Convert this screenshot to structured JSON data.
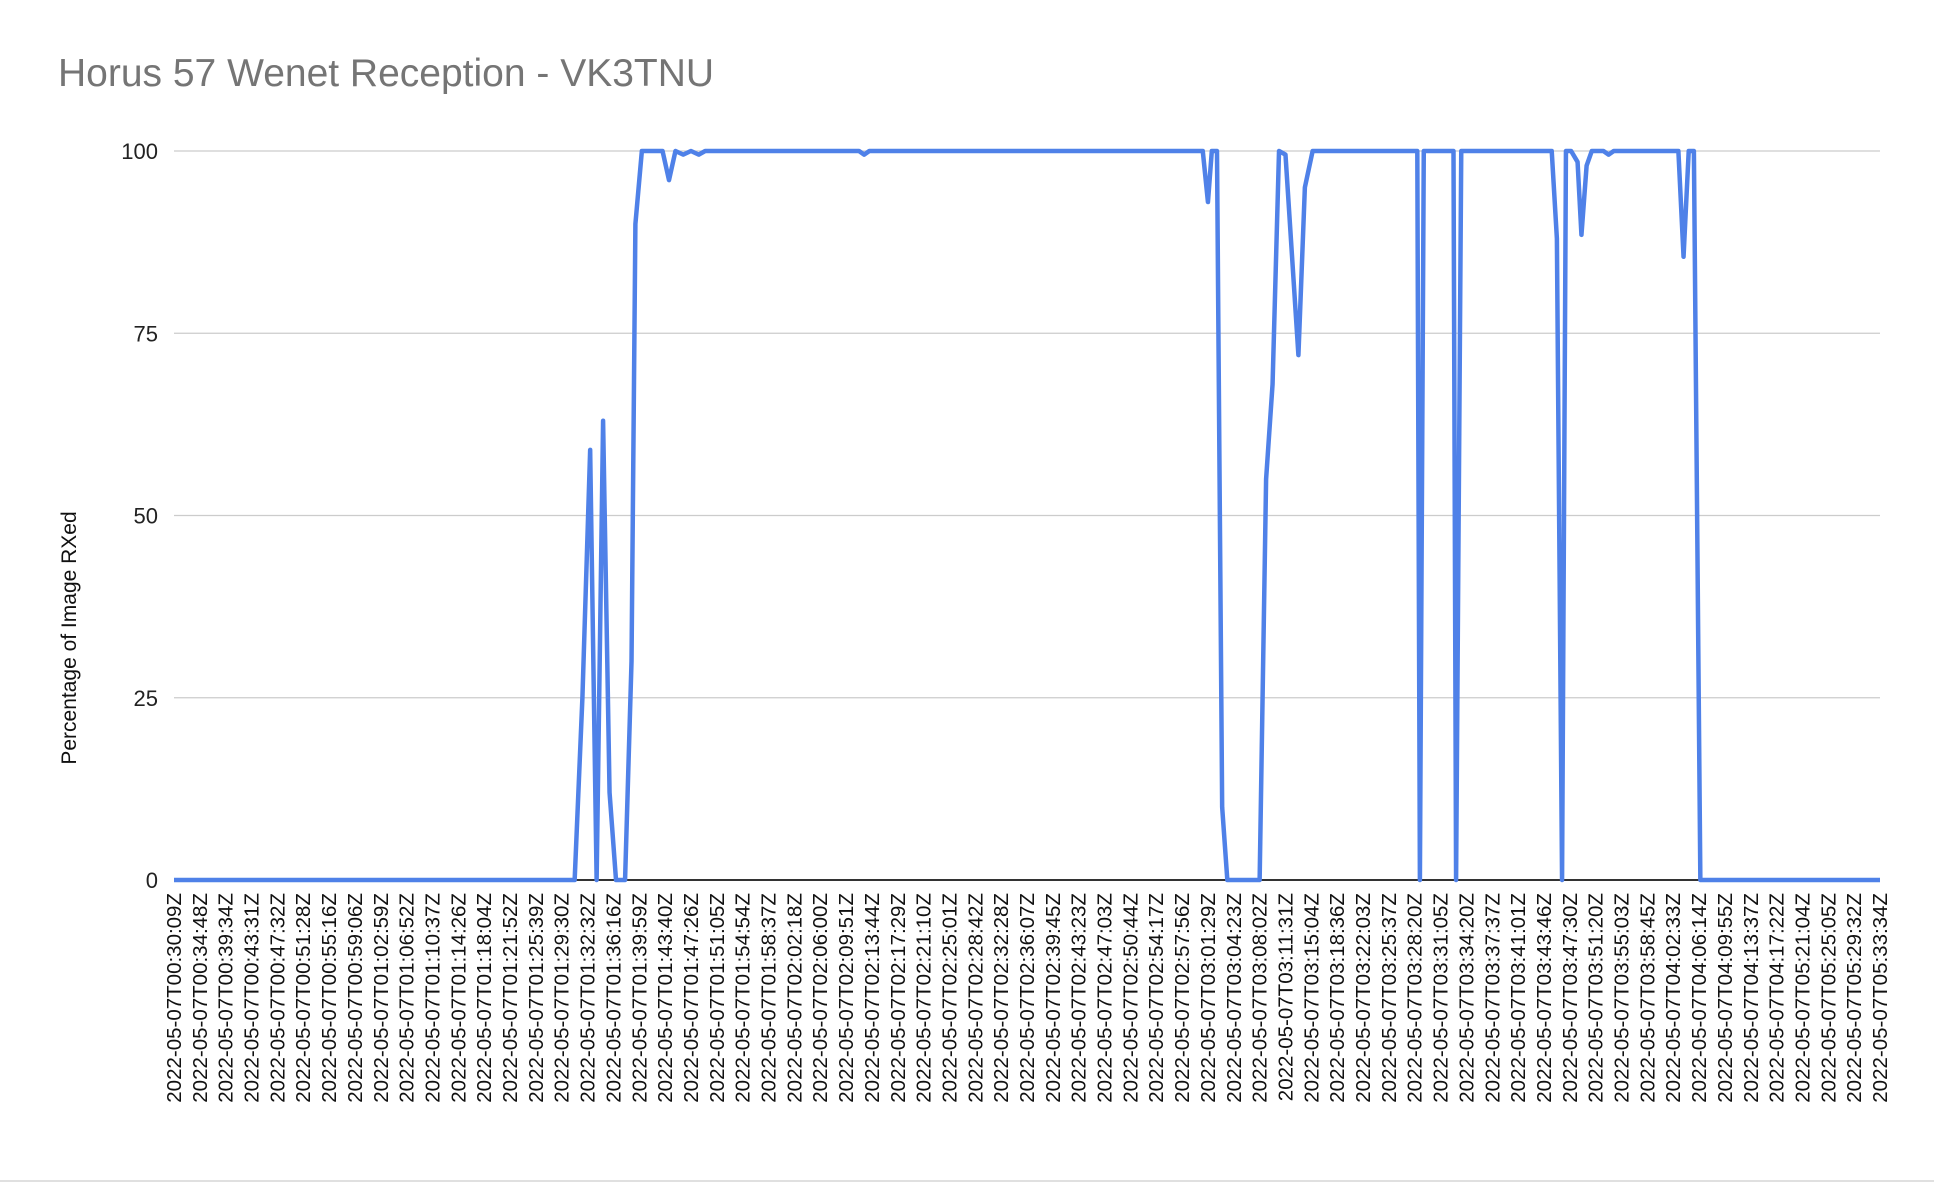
{
  "chart_data": {
    "type": "line",
    "title": "Horus 57 Wenet Reception - VK3TNU",
    "xlabel": "",
    "ylabel": "Percentage of Image RXed",
    "ylim": [
      0,
      100
    ],
    "yticks": [
      0,
      25,
      50,
      75,
      100
    ],
    "grid": true,
    "legend": "none",
    "line_color": "#4f81e8",
    "grid_color": "#cccccc",
    "x_tick_labels": [
      "2022-05-07T00:30:09Z",
      "2022-05-07T00:34:48Z",
      "2022-05-07T00:39:34Z",
      "2022-05-07T00:43:31Z",
      "2022-05-07T00:47:32Z",
      "2022-05-07T00:51:28Z",
      "2022-05-07T00:55:16Z",
      "2022-05-07T00:59:06Z",
      "2022-05-07T01:02:59Z",
      "2022-05-07T01:06:52Z",
      "2022-05-07T01:10:37Z",
      "2022-05-07T01:14:26Z",
      "2022-05-07T01:18:04Z",
      "2022-05-07T01:21:52Z",
      "2022-05-07T01:25:39Z",
      "2022-05-07T01:29:30Z",
      "2022-05-07T01:32:32Z",
      "2022-05-07T01:36:16Z",
      "2022-05-07T01:39:59Z",
      "2022-05-07T01:43:40Z",
      "2022-05-07T01:47:26Z",
      "2022-05-07T01:51:05Z",
      "2022-05-07T01:54:54Z",
      "2022-05-07T01:58:37Z",
      "2022-05-07T02:02:18Z",
      "2022-05-07T02:06:00Z",
      "2022-05-07T02:09:51Z",
      "2022-05-07T02:13:44Z",
      "2022-05-07T02:17:29Z",
      "2022-05-07T02:21:10Z",
      "2022-05-07T02:25:01Z",
      "2022-05-07T02:28:42Z",
      "2022-05-07T02:32:28Z",
      "2022-05-07T02:36:07Z",
      "2022-05-07T02:39:45Z",
      "2022-05-07T02:43:23Z",
      "2022-05-07T02:47:03Z",
      "2022-05-07T02:50:44Z",
      "2022-05-07T02:54:17Z",
      "2022-05-07T02:57:56Z",
      "2022-05-07T03:01:29Z",
      "2022-05-07T03:04:23Z",
      "2022-05-07T03:08:02Z",
      "2022-05-07T03:11:31Z",
      "2022-05-07T03:15:04Z",
      "2022-05-07T03:18:36Z",
      "2022-05-07T03:22:03Z",
      "2022-05-07T03:25:37Z",
      "2022-05-07T03:28:20Z",
      "2022-05-07T03:31:05Z",
      "2022-05-07T03:34:20Z",
      "2022-05-07T03:37:37Z",
      "2022-05-07T03:41:01Z",
      "2022-05-07T03:43:46Z",
      "2022-05-07T03:47:30Z",
      "2022-05-07T03:51:20Z",
      "2022-05-07T03:55:03Z",
      "2022-05-07T03:58:45Z",
      "2022-05-07T04:02:33Z",
      "2022-05-07T04:06:14Z",
      "2022-05-07T04:09:55Z",
      "2022-05-07T04:13:37Z",
      "2022-05-07T04:17:22Z",
      "2022-05-07T05:21:04Z",
      "2022-05-07T05:25:05Z",
      "2022-05-07T05:29:32Z",
      "2022-05-07T05:33:34Z"
    ],
    "series": [
      {
        "values": [
          0,
          0,
          0,
          0,
          0,
          0,
          0,
          0,
          0,
          0,
          0,
          0,
          0,
          0,
          0,
          0,
          0,
          0,
          0,
          0,
          0,
          0,
          0,
          0,
          0,
          0,
          0,
          0,
          0,
          0,
          0,
          0,
          0,
          0,
          0,
          0,
          0,
          0,
          0,
          0,
          0,
          0,
          0,
          0,
          0,
          0,
          0,
          0,
          0,
          0,
          0,
          0,
          0,
          0,
          0,
          0,
          0,
          0,
          0,
          0,
          0,
          0,
          0,
          0,
          0,
          0,
          0,
          0,
          0,
          0,
          0,
          0,
          0,
          0,
          0,
          0,
          0,
          0,
          0,
          0,
          0,
          0,
          0,
          0,
          0,
          0,
          0,
          0,
          0,
          0,
          0,
          0,
          0,
          0,
          0,
          0,
          0,
          0,
          0,
          0,
          0,
          0,
          0,
          0,
          0,
          0,
          0,
          0,
          0,
          0,
          0,
          0,
          0,
          0,
          0,
          0,
          0,
          0,
          0,
          0,
          0,
          0,
          0,
          0,
          0,
          0,
          0,
          0,
          0,
          0,
          0,
          0,
          0,
          0,
          0,
          0,
          0,
          0,
          0,
          0,
          0,
          0,
          0,
          0,
          0,
          0,
          0,
          0,
          0,
          0,
          0,
          0,
          0,
          0,
          0,
          0,
          0,
          0,
          0,
          0,
          0,
          0,
          0,
          0,
          0,
          0,
          0,
          0,
          0,
          0,
          0,
          0,
          0,
          0,
          0,
          0,
          0,
          0,
          0,
          0,
          0,
          0,
          0,
          0,
          0,
          0,
          0,
          0,
          0,
          0,
          0,
          0,
          0,
          0,
          0,
          0,
          0,
          0,
          0,
          0,
          0,
          0,
          0,
          0,
          0,
          0,
          0,
          0,
          0,
          0,
          0,
          0,
          0,
          0,
          0,
          0,
          0,
          0,
          0,
          0,
          0,
          0,
          0,
          0,
          0,
          0,
          0,
          0,
          0,
          0,
          0,
          0,
          0,
          0,
          0,
          0,
          0,
          0,
          0,
          0,
          0,
          0,
          0,
          0,
          0,
          0,
          0,
          0,
          0,
          0,
          0,
          0,
          0,
          0,
          0,
          0,
          0,
          0,
          0,
          0,
          0,
          0,
          0,
          0,
          0,
          0,
          0,
          0,
          0,
          0,
          0,
          0,
          0,
          0,
          0,
          0,
          0,
          0,
          0,
          0,
          0,
          0,
          0,
          0,
          0,
          0,
          0,
          0,
          0,
          0,
          0,
          0,
          0,
          0,
          0,
          0,
          0,
          0,
          0,
          0,
          0,
          0,
          0,
          0,
          0,
          0,
          0,
          0,
          0,
          0,
          0,
          0,
          0,
          0,
          0,
          0,
          0,
          0,
          0,
          0,
          0,
          0,
          0,
          0,
          0,
          0,
          0,
          0,
          0,
          0,
          0,
          0,
          0,
          0,
          0,
          0,
          0,
          0,
          0,
          0,
          0,
          0,
          0,
          0,
          0,
          0,
          0,
          0,
          0,
          0,
          0,
          0,
          0,
          0,
          0,
          0,
          0,
          0,
          0,
          0,
          0,
          0,
          0,
          0,
          0,
          0,
          0,
          0,
          0,
          0,
          0,
          0,
          0,
          0,
          0,
          0,
          0,
          0,
          0,
          0,
          0,
          0,
          0,
          0,
          0,
          0,
          0,
          0,
          0,
          0,
          0,
          0,
          0,
          0,
          0,
          0,
          0,
          0,
          0,
          0,
          0,
          0,
          0,
          0,
          0,
          0,
          0,
          0,
          0,
          0,
          0,
          0,
          0,
          0,
          0,
          0,
          0,
          0,
          0,
          0,
          0,
          0,
          0,
          0,
          0,
          0,
          0,
          0,
          0,
          0,
          0,
          0,
          0,
          0,
          0,
          0,
          0,
          0,
          0,
          0,
          0,
          0,
          0,
          0,
          0,
          0,
          0,
          0,
          0,
          0,
          0,
          0,
          0,
          0,
          0,
          0,
          0,
          0,
          0,
          0,
          0,
          0,
          0,
          0,
          0,
          0,
          0,
          0,
          0,
          0,
          0,
          0,
          0,
          0,
          0,
          0,
          0,
          0,
          0,
          0,
          0,
          0,
          0,
          0,
          0,
          0,
          0,
          0,
          0,
          0,
          0,
          0,
          0,
          0,
          0,
          0,
          0,
          0,
          0,
          0,
          0,
          0,
          0,
          0,
          0,
          0,
          0,
          0,
          0,
          0,
          0,
          0,
          0,
          0,
          0,
          0,
          0,
          0,
          0,
          0,
          0,
          0,
          0,
          0,
          0,
          0,
          0,
          0,
          0,
          0,
          0,
          0,
          0,
          0,
          0,
          0,
          0,
          0,
          0,
          0,
          0,
          0,
          0,
          0,
          0,
          0,
          0,
          0,
          0,
          0,
          0,
          0,
          0,
          0,
          0,
          0,
          0,
          0,
          0,
          0,
          0,
          0,
          0,
          0,
          0,
          0,
          0,
          0,
          0,
          0,
          0,
          0,
          0,
          0,
          0,
          0,
          0,
          0,
          0,
          0,
          0,
          0,
          0,
          0,
          0,
          0,
          0,
          0,
          0,
          0,
          0,
          0,
          0,
          0,
          0,
          0,
          0,
          0,
          0,
          0,
          0,
          0,
          0,
          0,
          0,
          0,
          0,
          0,
          0,
          0,
          0,
          0,
          0,
          0,
          0,
          0,
          0,
          0,
          0,
          0,
          0,
          0,
          0,
          0,
          0,
          0,
          0,
          0,
          0,
          0,
          0,
          0,
          0,
          0,
          0,
          0,
          0,
          0,
          0,
          0,
          0,
          0,
          0,
          0,
          0,
          0,
          0,
          0,
          0,
          0,
          0,
          0,
          0,
          0,
          0,
          0,
          0,
          0,
          0,
          0,
          0,
          0,
          0,
          0,
          0,
          0,
          0,
          0,
          0,
          0,
          0,
          0,
          0,
          0,
          0,
          0,
          0,
          0,
          0,
          0,
          0,
          0,
          0,
          0,
          0,
          0,
          0,
          0,
          0,
          0,
          0,
          0,
          0,
          0,
          0,
          0,
          0,
          0,
          0,
          0,
          0,
          0,
          0,
          0,
          0,
          0,
          0,
          0,
          0,
          0,
          0,
          0,
          0,
          0,
          0,
          0,
          0,
          0,
          0,
          0,
          0,
          0,
          0,
          0,
          0,
          0,
          0,
          0,
          0,
          0,
          0,
          0,
          0,
          0,
          0,
          0,
          0,
          0,
          0,
          0,
          0,
          0,
          0,
          0,
          0,
          0,
          0,
          0,
          0,
          0,
          0,
          0,
          0,
          0,
          0,
          0,
          0,
          0,
          0,
          0,
          0,
          0,
          0,
          0,
          0,
          0,
          0,
          0,
          0,
          0,
          0,
          0,
          0,
          0,
          0,
          0,
          0,
          0,
          0,
          0,
          0,
          0,
          0,
          0,
          0,
          0,
          0,
          0,
          0,
          0,
          0,
          0,
          0,
          0,
          0,
          0,
          0,
          0,
          0,
          0,
          0,
          0,
          0,
          0,
          0,
          0,
          0,
          0,
          0,
          0,
          0,
          0,
          0,
          0,
          0,
          0,
          0,
          0,
          0,
          0,
          0,
          0,
          0,
          0,
          0,
          0,
          0,
          0,
          0,
          0,
          0,
          0,
          0,
          0,
          0,
          0,
          0,
          0,
          0,
          0,
          0,
          0,
          0,
          0,
          0,
          0,
          0,
          0,
          0,
          0,
          0,
          0,
          0,
          0,
          0,
          0,
          0,
          0,
          0,
          0,
          0,
          0,
          0,
          0,
          0,
          0,
          0,
          0,
          0,
          0,
          0,
          0,
          0,
          0,
          0,
          0,
          0,
          0,
          0,
          0,
          0,
          0,
          0,
          0,
          0,
          0,
          0,
          0,
          0,
          0,
          0,
          0,
          0,
          0,
          0,
          0,
          0,
          0,
          0,
          0,
          0,
          0,
          0,
          0,
          0,
          0,
          0,
          0,
          0,
          0,
          0,
          0,
          0,
          0,
          0,
          0,
          0,
          0,
          0,
          0,
          0,
          0,
          0,
          0,
          0,
          0,
          0,
          0,
          0,
          0,
          0,
          0,
          0,
          0,
          0,
          0,
          0,
          0,
          0,
          0,
          0,
          0,
          0,
          0,
          0,
          0,
          0,
          0,
          0,
          0,
          0,
          0,
          0,
          0,
          0,
          0,
          0,
          0,
          0,
          0,
          0,
          0,
          0,
          0,
          0,
          0,
          0,
          0,
          0,
          0,
          0,
          0,
          0,
          0,
          0,
          0,
          0,
          0,
          0,
          0,
          0,
          0,
          0,
          0,
          0,
          0,
          0,
          0,
          0,
          0,
          0,
          0,
          0,
          0,
          0,
          0,
          0,
          0,
          0,
          0
        ]
      }
    ],
    "points_xy": [
      [
        0,
        0
      ],
      [
        15.5,
        0
      ],
      [
        15.8,
        25
      ],
      [
        16.1,
        59
      ],
      [
        16.35,
        0
      ],
      [
        16.6,
        63
      ],
      [
        16.85,
        12
      ],
      [
        17.1,
        0
      ],
      [
        17.45,
        0
      ],
      [
        17.7,
        30
      ],
      [
        17.85,
        90
      ],
      [
        18.1,
        100
      ],
      [
        18.6,
        100
      ],
      [
        18.9,
        100
      ],
      [
        19.15,
        96
      ],
      [
        19.4,
        100
      ],
      [
        19.7,
        99.5
      ],
      [
        20.0,
        100
      ],
      [
        20.3,
        99.5
      ],
      [
        20.55,
        100
      ],
      [
        21.0,
        100
      ],
      [
        26.5,
        100
      ],
      [
        26.7,
        99.5
      ],
      [
        26.9,
        100
      ],
      [
        39.8,
        100
      ],
      [
        40.0,
        93
      ],
      [
        40.15,
        100
      ],
      [
        40.35,
        100
      ],
      [
        40.55,
        10
      ],
      [
        40.75,
        0
      ],
      [
        41.0,
        0
      ],
      [
        42.0,
        0
      ],
      [
        42.25,
        55
      ],
      [
        42.5,
        68
      ],
      [
        42.75,
        100
      ],
      [
        43.0,
        99.5
      ],
      [
        43.5,
        72
      ],
      [
        43.75,
        95
      ],
      [
        44.05,
        100
      ],
      [
        48.0,
        100
      ],
      [
        48.1,
        100
      ],
      [
        48.2,
        0
      ],
      [
        48.35,
        100
      ],
      [
        49.5,
        100
      ],
      [
        49.6,
        0
      ],
      [
        49.8,
        100
      ],
      [
        53.3,
        100
      ],
      [
        53.5,
        88
      ],
      [
        53.7,
        0
      ],
      [
        53.85,
        100
      ],
      [
        54.05,
        100
      ],
      [
        54.3,
        98.5
      ],
      [
        54.45,
        88.5
      ],
      [
        54.65,
        98
      ],
      [
        54.85,
        100
      ],
      [
        55.3,
        100
      ],
      [
        55.5,
        99.5
      ],
      [
        55.7,
        100
      ],
      [
        58.2,
        100
      ],
      [
        58.4,
        85.5
      ],
      [
        58.6,
        100
      ],
      [
        58.8,
        100
      ],
      [
        59.05,
        0
      ],
      [
        66,
        0
      ]
    ]
  }
}
